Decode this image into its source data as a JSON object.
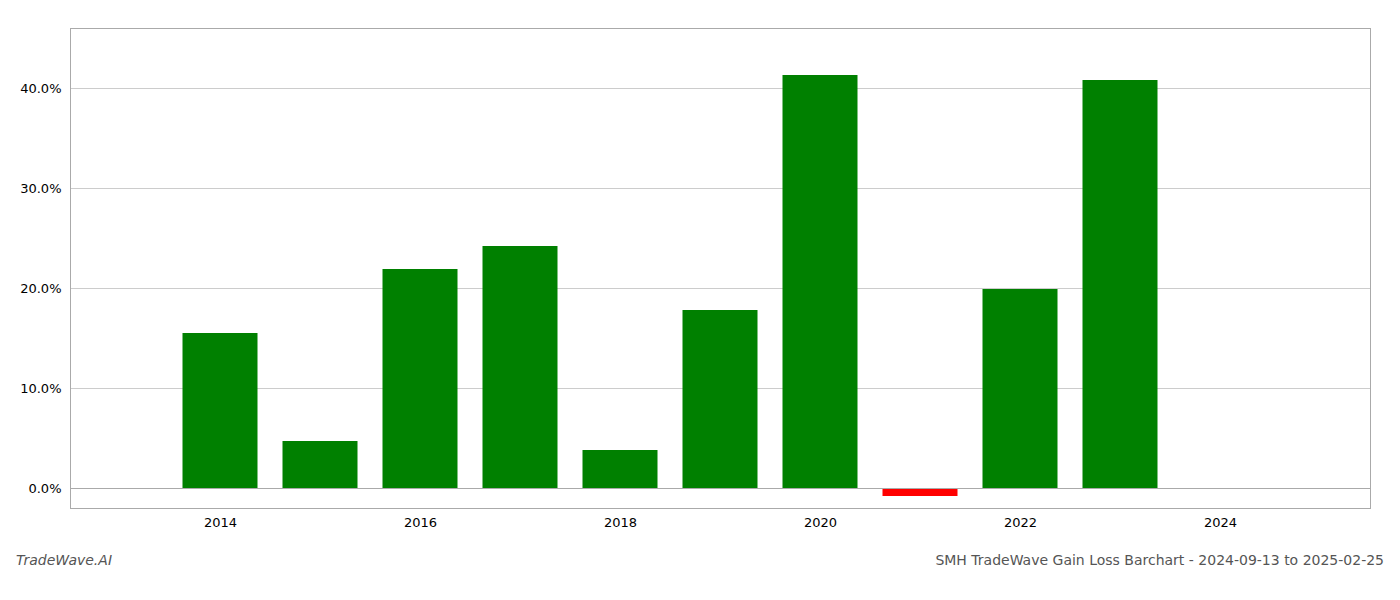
{
  "chart_data": {
    "type": "bar",
    "x": [
      2014,
      2015,
      2016,
      2017,
      2018,
      2019,
      2020,
      2021,
      2022,
      2023
    ],
    "values": [
      0.155,
      0.047,
      0.219,
      0.242,
      0.038,
      0.178,
      0.413,
      -0.008,
      0.199,
      0.408
    ],
    "colors": [
      "#008000",
      "#008000",
      "#008000",
      "#008000",
      "#008000",
      "#008000",
      "#008000",
      "#ff0000",
      "#008000",
      "#008000"
    ],
    "xlim": [
      2012.5,
      2025.5
    ],
    "xticks": [
      2014,
      2016,
      2018,
      2020,
      2022,
      2024
    ],
    "ylim": [
      -0.02,
      0.46
    ],
    "yticks": [
      {
        "value": 0.0,
        "label": "0.0%"
      },
      {
        "value": 0.1,
        "label": "10.0%"
      },
      {
        "value": 0.2,
        "label": "20.0%"
      },
      {
        "value": 0.3,
        "label": "30.0%"
      },
      {
        "value": 0.4,
        "label": "40.0%"
      }
    ],
    "grid": true,
    "annotations": [
      "TradeWave.AI",
      "SMH TradeWave Gain Loss Barchart - 2024-09-13 to 2025-02-25"
    ]
  }
}
